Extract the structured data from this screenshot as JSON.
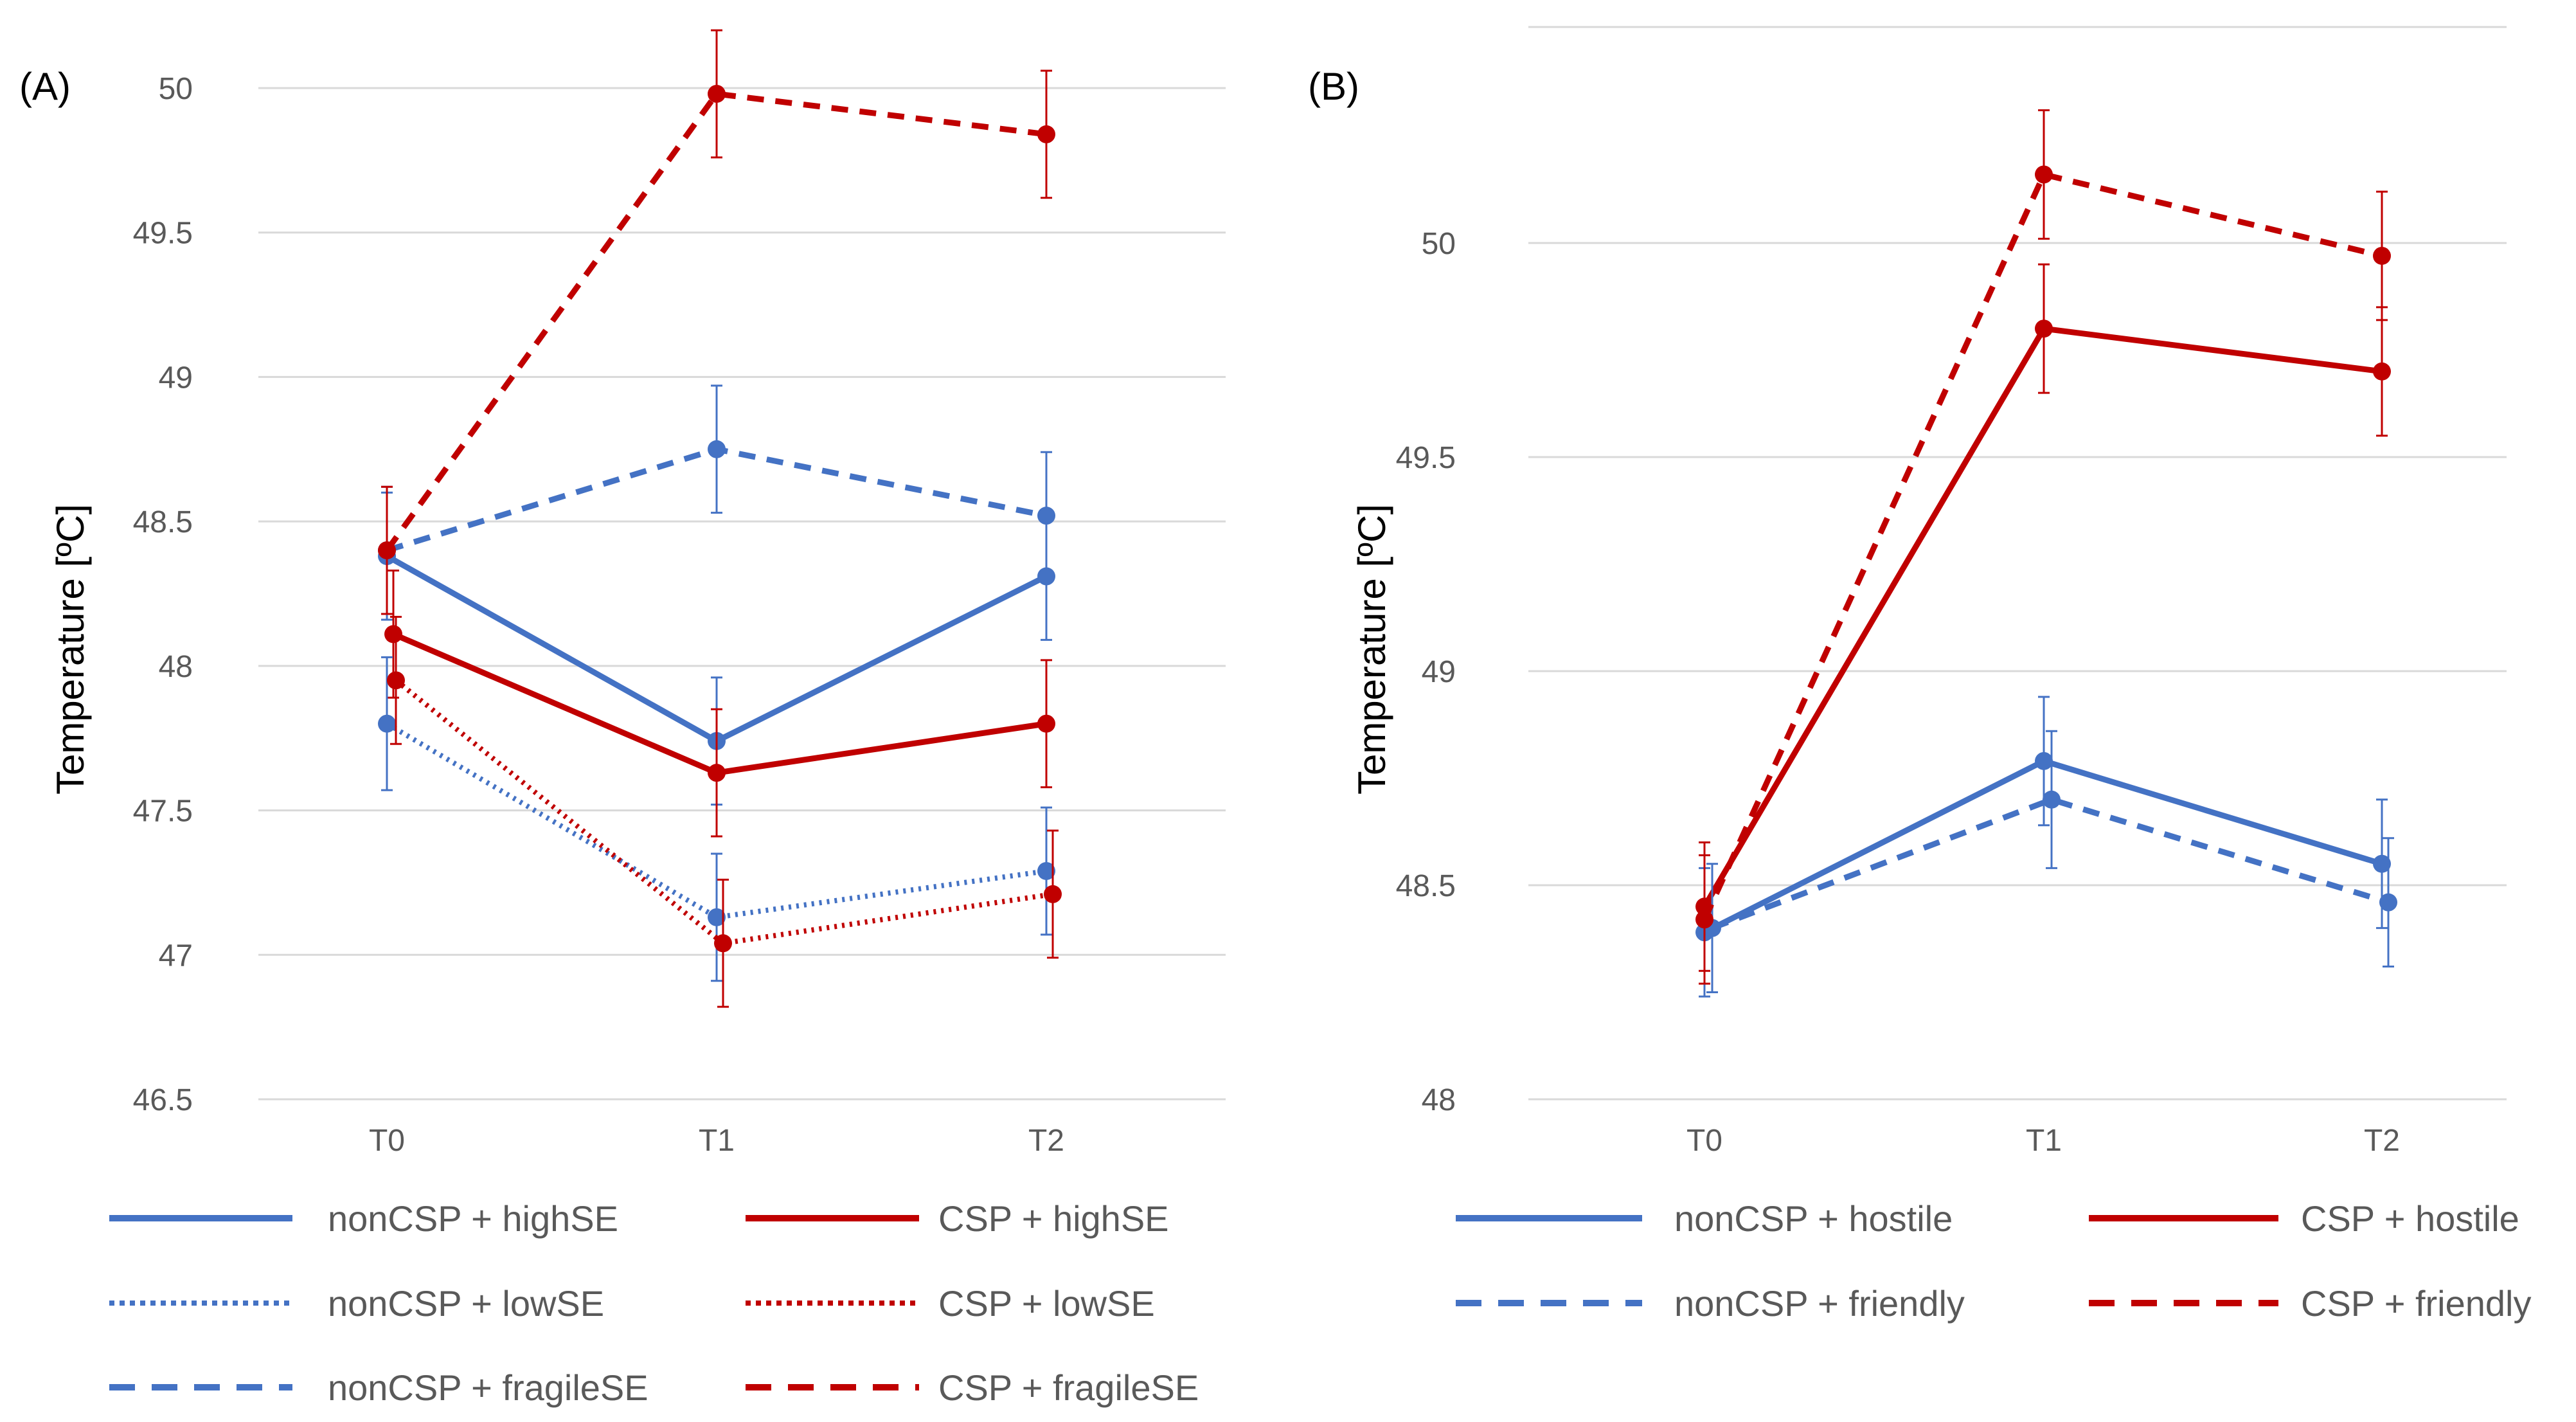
{
  "chart_data": [
    {
      "panel_label": "(A)",
      "type": "line",
      "title": "",
      "xlabel": "",
      "ylabel": "Temperature [ºC]",
      "categories": [
        "T0",
        "T1",
        "T2"
      ],
      "ylim": [
        46.5,
        50
      ],
      "yticks": [
        46.5,
        47,
        47.5,
        48,
        48.5,
        49,
        49.5,
        50
      ],
      "ytick_labels": [
        "46.5",
        "47",
        "47.5",
        "48",
        "48.5",
        "49",
        "49.5",
        "50"
      ],
      "grid": true,
      "legend_position": "bottom",
      "series": [
        {
          "name": "nonCSP + highSE",
          "color": "#4472C4",
          "style": "solid",
          "values": [
            48.38,
            47.74,
            48.31
          ],
          "errors": [
            0.22,
            0.22,
            0.22
          ]
        },
        {
          "name": "CSP + highSE",
          "color": "#C00000",
          "style": "solid",
          "values": [
            48.11,
            47.63,
            47.8
          ],
          "errors": [
            0.22,
            0.22,
            0.22
          ]
        },
        {
          "name": "nonCSP + lowSE",
          "color": "#4472C4",
          "style": "dotted",
          "values": [
            47.8,
            47.13,
            47.29
          ],
          "errors": [
            0.23,
            0.22,
            0.22
          ]
        },
        {
          "name": "CSP + lowSE",
          "color": "#C00000",
          "style": "dotted",
          "values": [
            47.95,
            47.04,
            47.21
          ],
          "errors": [
            0.22,
            0.22,
            0.22
          ]
        },
        {
          "name": "nonCSP + fragileSE",
          "color": "#4472C4",
          "style": "dashed",
          "values": [
            48.4,
            48.75,
            48.52
          ],
          "errors": [
            0.22,
            0.22,
            0.22
          ]
        },
        {
          "name": "CSP + fragileSE",
          "color": "#C00000",
          "style": "dashed",
          "values": [
            48.4,
            49.98,
            49.84
          ],
          "errors": [
            0.22,
            0.22,
            0.22
          ]
        }
      ]
    },
    {
      "panel_label": "(B)",
      "type": "line",
      "title": "",
      "xlabel": "",
      "ylabel": "Temperature [ºC]",
      "categories": [
        "T0",
        "T1",
        "T2"
      ],
      "ylim": [
        48,
        50.5
      ],
      "yticks": [
        48,
        48.5,
        49,
        49.5,
        50
      ],
      "ytick_labels": [
        "48",
        "48.5",
        "49",
        "49.5",
        "50"
      ],
      "grid": true,
      "legend_position": "bottom",
      "series": [
        {
          "name": "nonCSP + hostile",
          "color": "#4472C4",
          "style": "solid",
          "values": [
            48.39,
            48.79,
            48.55
          ],
          "errors": [
            0.15,
            0.15,
            0.15
          ]
        },
        {
          "name": "CSP + hostile",
          "color": "#C00000",
          "style": "solid",
          "values": [
            48.45,
            49.8,
            49.7
          ],
          "errors": [
            0.15,
            0.15,
            0.15
          ]
        },
        {
          "name": "nonCSP + friendly",
          "color": "#4472C4",
          "style": "dashed",
          "values": [
            48.4,
            48.7,
            48.46
          ],
          "errors": [
            0.15,
            0.16,
            0.15
          ]
        },
        {
          "name": "CSP + friendly",
          "color": "#C00000",
          "style": "dashed",
          "values": [
            48.42,
            50.16,
            49.97
          ],
          "errors": [
            0.15,
            0.15,
            0.15
          ]
        }
      ]
    }
  ]
}
